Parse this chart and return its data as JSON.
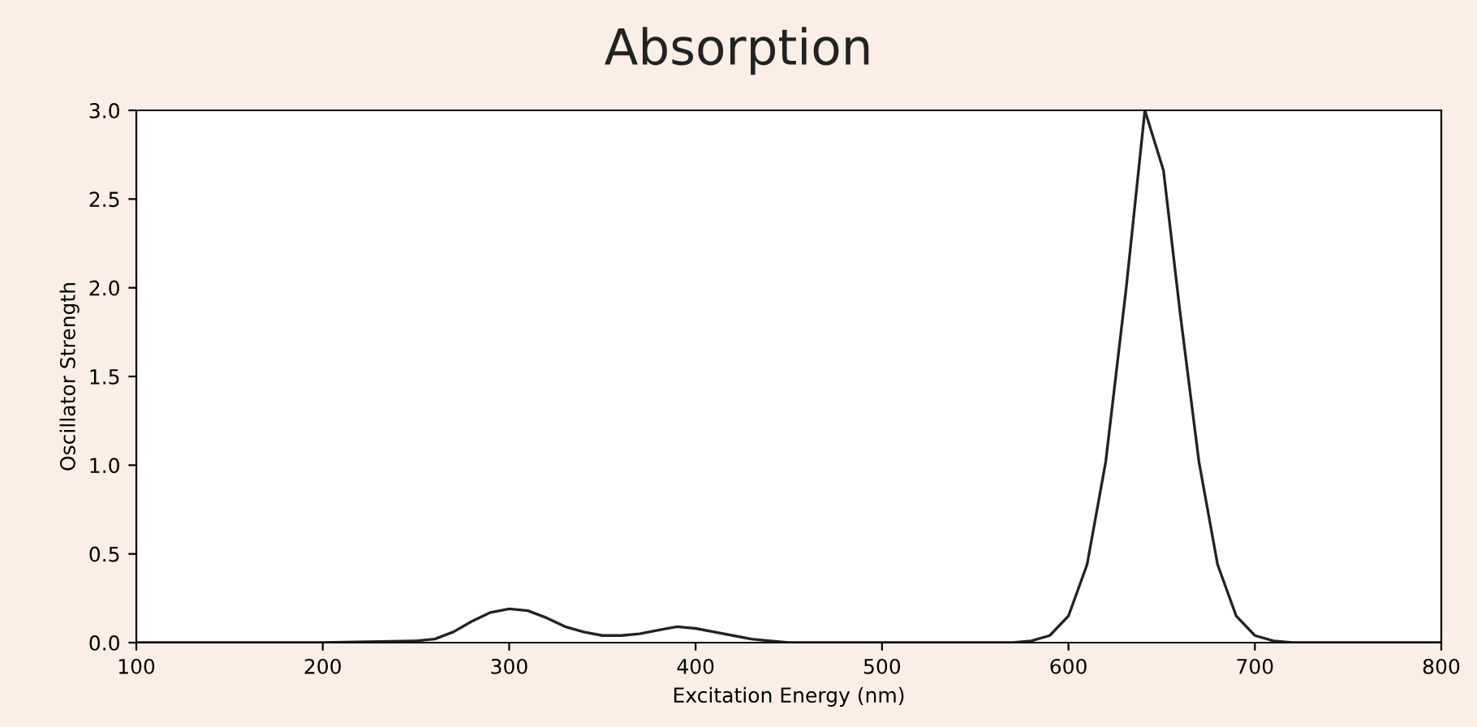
{
  "chart_data": {
    "type": "line",
    "title": "Absorption",
    "xlabel": "Excitation Energy (nm)",
    "ylabel": "Oscillator Strength",
    "x": [
      100,
      200,
      250,
      260,
      270,
      280,
      290,
      300,
      310,
      320,
      330,
      340,
      350,
      360,
      370,
      380,
      390,
      400,
      410,
      420,
      430,
      440,
      450,
      460,
      500,
      560,
      570,
      580,
      590,
      600,
      610,
      620,
      631,
      641,
      651,
      660,
      670,
      680,
      690,
      700,
      710,
      720,
      760,
      800
    ],
    "series": [
      {
        "color": "#222222",
        "values": [
          0,
          0,
          0.01,
          0.02,
          0.06,
          0.12,
          0.17,
          0.19,
          0.18,
          0.14,
          0.09,
          0.06,
          0.04,
          0.04,
          0.05,
          0.07,
          0.09,
          0.08,
          0.06,
          0.04,
          0.02,
          0.01,
          0,
          0,
          0,
          0,
          0,
          0.01,
          0.04,
          0.15,
          0.44,
          1.02,
          2.0,
          3.0,
          2.66,
          1.85,
          1.02,
          0.44,
          0.15,
          0.04,
          0.01,
          0,
          0,
          0
        ]
      }
    ],
    "xlim": [
      100,
      800
    ],
    "ylim": [
      0,
      3.0
    ],
    "xticks": [
      100,
      200,
      300,
      400,
      500,
      600,
      700,
      800
    ],
    "yticks": [
      {
        "value": 0,
        "label": "0.0"
      },
      0.5,
      {
        "value": 1,
        "label": "1.0"
      },
      1.5,
      {
        "value": 2,
        "label": "2.0"
      },
      2.5,
      {
        "value": 3,
        "label": "3.0"
      }
    ],
    "grid": false,
    "legend": false
  }
}
